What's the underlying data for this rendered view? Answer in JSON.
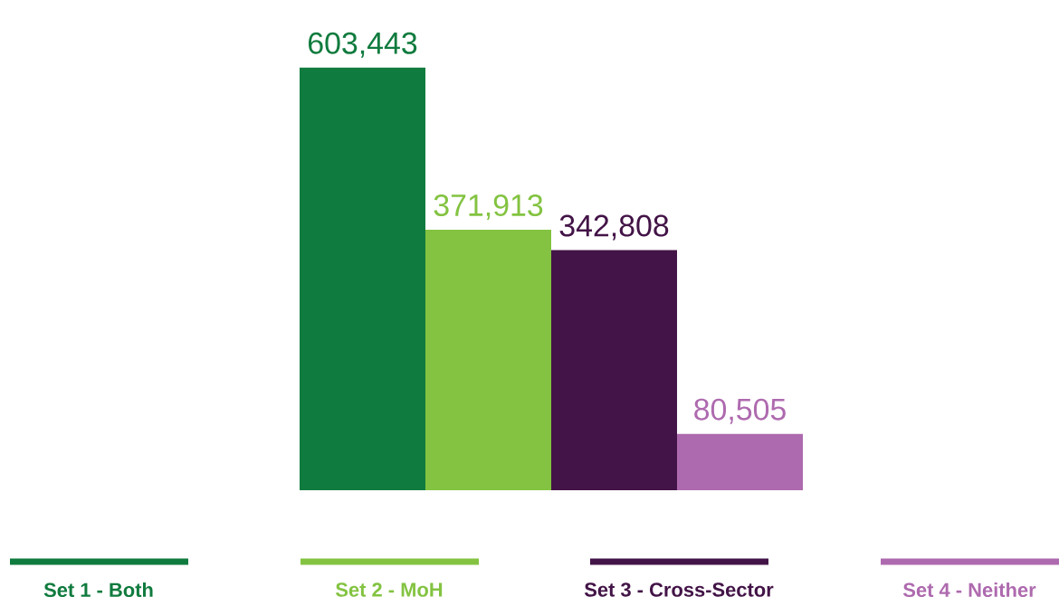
{
  "chart_data": {
    "type": "bar",
    "categories": [
      null
    ],
    "series": [
      {
        "name": "Set 1 - Both",
        "color": "#107b3e",
        "values": [
          603443
        ],
        "value_labels": [
          "603,443"
        ]
      },
      {
        "name": "Set 2 - MoH",
        "color": "#83c341",
        "values": [
          371913
        ],
        "value_labels": [
          "371,913"
        ]
      },
      {
        "name": "Set 3 - Cross-Sector",
        "color": "#431447",
        "values": [
          342808
        ],
        "value_labels": [
          "342,808"
        ]
      },
      {
        "name": "Set 4 - Neither",
        "color": "#ae6aae",
        "values": [
          80505
        ],
        "value_labels": [
          "80,505"
        ]
      }
    ],
    "legend": "bottom"
  }
}
